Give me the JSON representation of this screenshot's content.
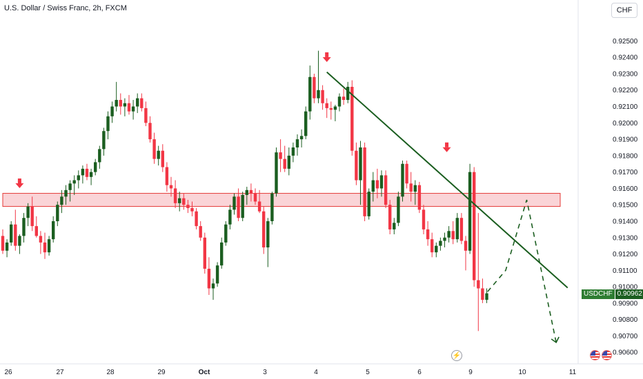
{
  "header": {
    "title": "U.S. Dollar / Swiss Franc, 2h, FXCM",
    "currency_button": "CHF"
  },
  "price_badge": {
    "symbol": "USDCHF",
    "price": "0.90962"
  },
  "icons": {
    "event_icon": "lightning-bolt-icon",
    "flag_icon": "us-flag-icon"
  },
  "colors": {
    "up": "#1b5e20",
    "down": "#f23645",
    "trendline": "#1b5e20",
    "zone_fill": "#f8c5c9",
    "zone_border": "#e53935",
    "arrow": "#f23645"
  },
  "chart_data": {
    "type": "candlestick",
    "title": "U.S. Dollar / Swiss Franc, 2h, FXCM",
    "y_axis_ticks": [
      "0.92500",
      "0.92400",
      "0.92300",
      "0.92200",
      "0.92100",
      "0.92000",
      "0.91900",
      "0.91800",
      "0.91700",
      "0.91600",
      "0.91500",
      "0.91400",
      "0.91300",
      "0.91200",
      "0.91100",
      "0.91000",
      "0.90900",
      "0.90800",
      "0.90700",
      "0.90600"
    ],
    "x_axis_labels": [
      "26",
      "27",
      "28",
      "29",
      "Oct",
      "3",
      "4",
      "5",
      "6",
      "9",
      "10",
      "11"
    ],
    "ylim": [
      0.9058,
      0.9259
    ],
    "last_price": 0.90962,
    "candles": [
      [
        0.9131,
        0.9135,
        0.912,
        0.9122
      ],
      [
        0.9122,
        0.9129,
        0.9118,
        0.9127
      ],
      [
        0.9127,
        0.914,
        0.9125,
        0.9138
      ],
      [
        0.9138,
        0.9147,
        0.9122,
        0.9125
      ],
      [
        0.9125,
        0.9132,
        0.912,
        0.9131
      ],
      [
        0.9131,
        0.9145,
        0.9127,
        0.9142
      ],
      [
        0.9142,
        0.9151,
        0.9137,
        0.9149
      ],
      [
        0.9149,
        0.9155,
        0.9134,
        0.9137
      ],
      [
        0.9137,
        0.9143,
        0.913,
        0.9131
      ],
      [
        0.9131,
        0.9134,
        0.912,
        0.9127
      ],
      [
        0.9127,
        0.9133,
        0.9117,
        0.9121
      ],
      [
        0.9121,
        0.9131,
        0.9119,
        0.9129
      ],
      [
        0.9129,
        0.9143,
        0.9127,
        0.914
      ],
      [
        0.914,
        0.9152,
        0.9137,
        0.915
      ],
      [
        0.915,
        0.9159,
        0.9145,
        0.9155
      ],
      [
        0.9155,
        0.9162,
        0.915,
        0.9159
      ],
      [
        0.9159,
        0.9165,
        0.9152,
        0.9163
      ],
      [
        0.9163,
        0.9168,
        0.9156,
        0.9165
      ],
      [
        0.9165,
        0.9171,
        0.916,
        0.9168
      ],
      [
        0.9168,
        0.9174,
        0.9163,
        0.9172
      ],
      [
        0.9172,
        0.9175,
        0.9165,
        0.9167
      ],
      [
        0.9167,
        0.9172,
        0.9162,
        0.917
      ],
      [
        0.917,
        0.9178,
        0.9168,
        0.9176
      ],
      [
        0.9176,
        0.9186,
        0.9172,
        0.9184
      ],
      [
        0.9184,
        0.9197,
        0.918,
        0.9195
      ],
      [
        0.9195,
        0.9207,
        0.919,
        0.9204
      ],
      [
        0.9204,
        0.9213,
        0.92,
        0.921
      ],
      [
        0.921,
        0.9225,
        0.9207,
        0.9214
      ],
      [
        0.9214,
        0.9218,
        0.9205,
        0.921
      ],
      [
        0.921,
        0.9215,
        0.9204,
        0.9212
      ],
      [
        0.9212,
        0.9217,
        0.9205,
        0.9207
      ],
      [
        0.9207,
        0.9214,
        0.9202,
        0.921
      ],
      [
        0.921,
        0.9218,
        0.9206,
        0.9215
      ],
      [
        0.9215,
        0.9218,
        0.9207,
        0.9209
      ],
      [
        0.9209,
        0.9213,
        0.9198,
        0.92
      ],
      [
        0.92,
        0.9204,
        0.9188,
        0.919
      ],
      [
        0.919,
        0.9194,
        0.9175,
        0.9178
      ],
      [
        0.9178,
        0.9186,
        0.9174,
        0.9183
      ],
      [
        0.9183,
        0.9187,
        0.917,
        0.9173
      ],
      [
        0.9173,
        0.9176,
        0.9158,
        0.9162
      ],
      [
        0.9162,
        0.9167,
        0.9155,
        0.916
      ],
      [
        0.916,
        0.9165,
        0.9148,
        0.9151
      ],
      [
        0.9151,
        0.9158,
        0.9146,
        0.9154
      ],
      [
        0.9154,
        0.9157,
        0.9147,
        0.915
      ],
      [
        0.915,
        0.9153,
        0.9145,
        0.9148
      ],
      [
        0.9148,
        0.9152,
        0.9143,
        0.9146
      ],
      [
        0.9146,
        0.9148,
        0.9135,
        0.9137
      ],
      [
        0.9137,
        0.914,
        0.9128,
        0.913
      ],
      [
        0.913,
        0.9133,
        0.9108,
        0.9111
      ],
      [
        0.9111,
        0.9118,
        0.9095,
        0.9099
      ],
      [
        0.9099,
        0.9105,
        0.9092,
        0.9102
      ],
      [
        0.9102,
        0.9115,
        0.91,
        0.9113
      ],
      [
        0.9113,
        0.913,
        0.9111,
        0.9127
      ],
      [
        0.9127,
        0.914,
        0.9125,
        0.9138
      ],
      [
        0.9138,
        0.915,
        0.9135,
        0.9147
      ],
      [
        0.9147,
        0.9157,
        0.9144,
        0.9155
      ],
      [
        0.9155,
        0.916,
        0.914,
        0.9142
      ],
      [
        0.9142,
        0.9158,
        0.914,
        0.9156
      ],
      [
        0.9156,
        0.9161,
        0.915,
        0.9159
      ],
      [
        0.9159,
        0.9163,
        0.9152,
        0.9157
      ],
      [
        0.9157,
        0.916,
        0.915,
        0.9152
      ],
      [
        0.9152,
        0.9159,
        0.9145,
        0.9146
      ],
      [
        0.9146,
        0.9149,
        0.912,
        0.9124
      ],
      [
        0.9124,
        0.9142,
        0.9112,
        0.914
      ],
      [
        0.914,
        0.9158,
        0.9138,
        0.9157
      ],
      [
        0.9157,
        0.9185,
        0.9155,
        0.9182
      ],
      [
        0.9182,
        0.919,
        0.917,
        0.9178
      ],
      [
        0.9178,
        0.9186,
        0.917,
        0.9172
      ],
      [
        0.9172,
        0.9185,
        0.9168,
        0.918
      ],
      [
        0.918,
        0.9188,
        0.9176,
        0.9185
      ],
      [
        0.9185,
        0.9193,
        0.918,
        0.919
      ],
      [
        0.919,
        0.9196,
        0.9185,
        0.9192
      ],
      [
        0.9192,
        0.921,
        0.919,
        0.9207
      ],
      [
        0.9207,
        0.9235,
        0.9202,
        0.9228
      ],
      [
        0.9228,
        0.923,
        0.9212,
        0.9215
      ],
      [
        0.9215,
        0.9244,
        0.9212,
        0.922
      ],
      [
        0.922,
        0.9223,
        0.9208,
        0.9212
      ],
      [
        0.9212,
        0.9215,
        0.9203,
        0.9209
      ],
      [
        0.9209,
        0.9213,
        0.9202,
        0.9208
      ],
      [
        0.9208,
        0.9211,
        0.9201,
        0.921
      ],
      [
        0.921,
        0.9218,
        0.9207,
        0.9216
      ],
      [
        0.9216,
        0.9221,
        0.9211,
        0.9214
      ],
      [
        0.9214,
        0.9225,
        0.9212,
        0.9222
      ],
      [
        0.9222,
        0.9226,
        0.918,
        0.9183
      ],
      [
        0.9183,
        0.9188,
        0.9162,
        0.9165
      ],
      [
        0.9165,
        0.9189,
        0.915,
        0.9185
      ],
      [
        0.9185,
        0.9188,
        0.914,
        0.9143
      ],
      [
        0.9143,
        0.916,
        0.9141,
        0.9158
      ],
      [
        0.9158,
        0.917,
        0.9152,
        0.9165
      ],
      [
        0.9165,
        0.9172,
        0.9154,
        0.916
      ],
      [
        0.916,
        0.9171,
        0.9155,
        0.9168
      ],
      [
        0.9168,
        0.9171,
        0.9148,
        0.915
      ],
      [
        0.915,
        0.9153,
        0.9132,
        0.9135
      ],
      [
        0.9135,
        0.9142,
        0.9132,
        0.9139
      ],
      [
        0.9139,
        0.9158,
        0.9137,
        0.9155
      ],
      [
        0.9155,
        0.9177,
        0.9152,
        0.9175
      ],
      [
        0.9175,
        0.9177,
        0.916,
        0.9163
      ],
      [
        0.9163,
        0.917,
        0.9152,
        0.9158
      ],
      [
        0.9158,
        0.9165,
        0.915,
        0.9162
      ],
      [
        0.9162,
        0.9164,
        0.9145,
        0.9147
      ],
      [
        0.9147,
        0.915,
        0.9132,
        0.9135
      ],
      [
        0.9135,
        0.914,
        0.9125,
        0.9129
      ],
      [
        0.9129,
        0.9133,
        0.9118,
        0.9121
      ],
      [
        0.9121,
        0.9127,
        0.9118,
        0.9125
      ],
      [
        0.9125,
        0.913,
        0.9122,
        0.9128
      ],
      [
        0.9128,
        0.9133,
        0.9124,
        0.913
      ],
      [
        0.913,
        0.9137,
        0.9127,
        0.9134
      ],
      [
        0.9134,
        0.914,
        0.9126,
        0.9129
      ],
      [
        0.9129,
        0.9145,
        0.9127,
        0.9142
      ],
      [
        0.9142,
        0.9145,
        0.9126,
        0.9128
      ],
      [
        0.9128,
        0.9131,
        0.911,
        0.9122
      ],
      [
        0.9122,
        0.9175,
        0.912,
        0.917
      ],
      [
        0.917,
        0.9173,
        0.91,
        0.9104
      ],
      [
        0.9104,
        0.9145,
        0.9073,
        0.9099
      ],
      [
        0.9099,
        0.9105,
        0.909,
        0.9092
      ],
      [
        0.9092,
        0.9099,
        0.909,
        0.9096
      ]
    ],
    "support_zone": [
      0.9149,
      0.9157
    ],
    "trendline": {
      "from": {
        "candle": 77,
        "price": 0.9231
      },
      "to": {
        "candle": 117.5,
        "price": 0.9112
      }
    },
    "projection": [
      {
        "candle": 115.2,
        "price": 0.9097
      },
      {
        "candle": 119.5,
        "price": 0.911
      },
      {
        "candle": 124.5,
        "price": 0.9153
      },
      {
        "candle": 131.5,
        "price": 0.9066
      }
    ],
    "arrows": [
      {
        "candle": 4,
        "price": 0.9161
      },
      {
        "candle": 77,
        "price": 0.9238
      },
      {
        "candle": 105.5,
        "price": 0.9183
      }
    ],
    "grid": false,
    "legend": "none"
  }
}
